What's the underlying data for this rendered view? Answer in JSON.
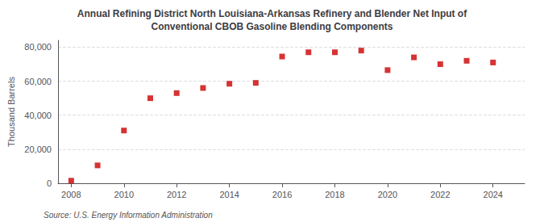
{
  "chart_data": {
    "type": "scatter",
    "title": "Annual Refining District North Louisiana-Arkansas Refinery and Blender Net Input of\nConventional CBOB Gasoline Blending Components",
    "ylabel": "Thousand Barrels",
    "source": "Source: U.S. Energy Information Administration",
    "x": [
      2008,
      2009,
      2010,
      2011,
      2012,
      2013,
      2014,
      2015,
      2016,
      2017,
      2018,
      2019,
      2020,
      2021,
      2022,
      2023,
      2024
    ],
    "values": [
      1500,
      10500,
      31000,
      50000,
      53000,
      56000,
      58500,
      59000,
      74500,
      77000,
      77000,
      78000,
      66500,
      74000,
      70000,
      72000,
      71000
    ],
    "color": "#cc0000",
    "marker": "square",
    "xlim": [
      2007.5,
      2025.2
    ],
    "xticks": [
      2008,
      2010,
      2012,
      2014,
      2016,
      2018,
      2020,
      2022,
      2024
    ],
    "ylim": [
      0,
      84000
    ],
    "yticks": [
      0,
      {
        "value": 20000,
        "label": "20,000"
      },
      {
        "value": 40000,
        "label": "40,000"
      },
      {
        "value": 60000,
        "label": "60,000"
      },
      {
        "value": 80000,
        "label": "80,000"
      }
    ],
    "grid": true
  }
}
